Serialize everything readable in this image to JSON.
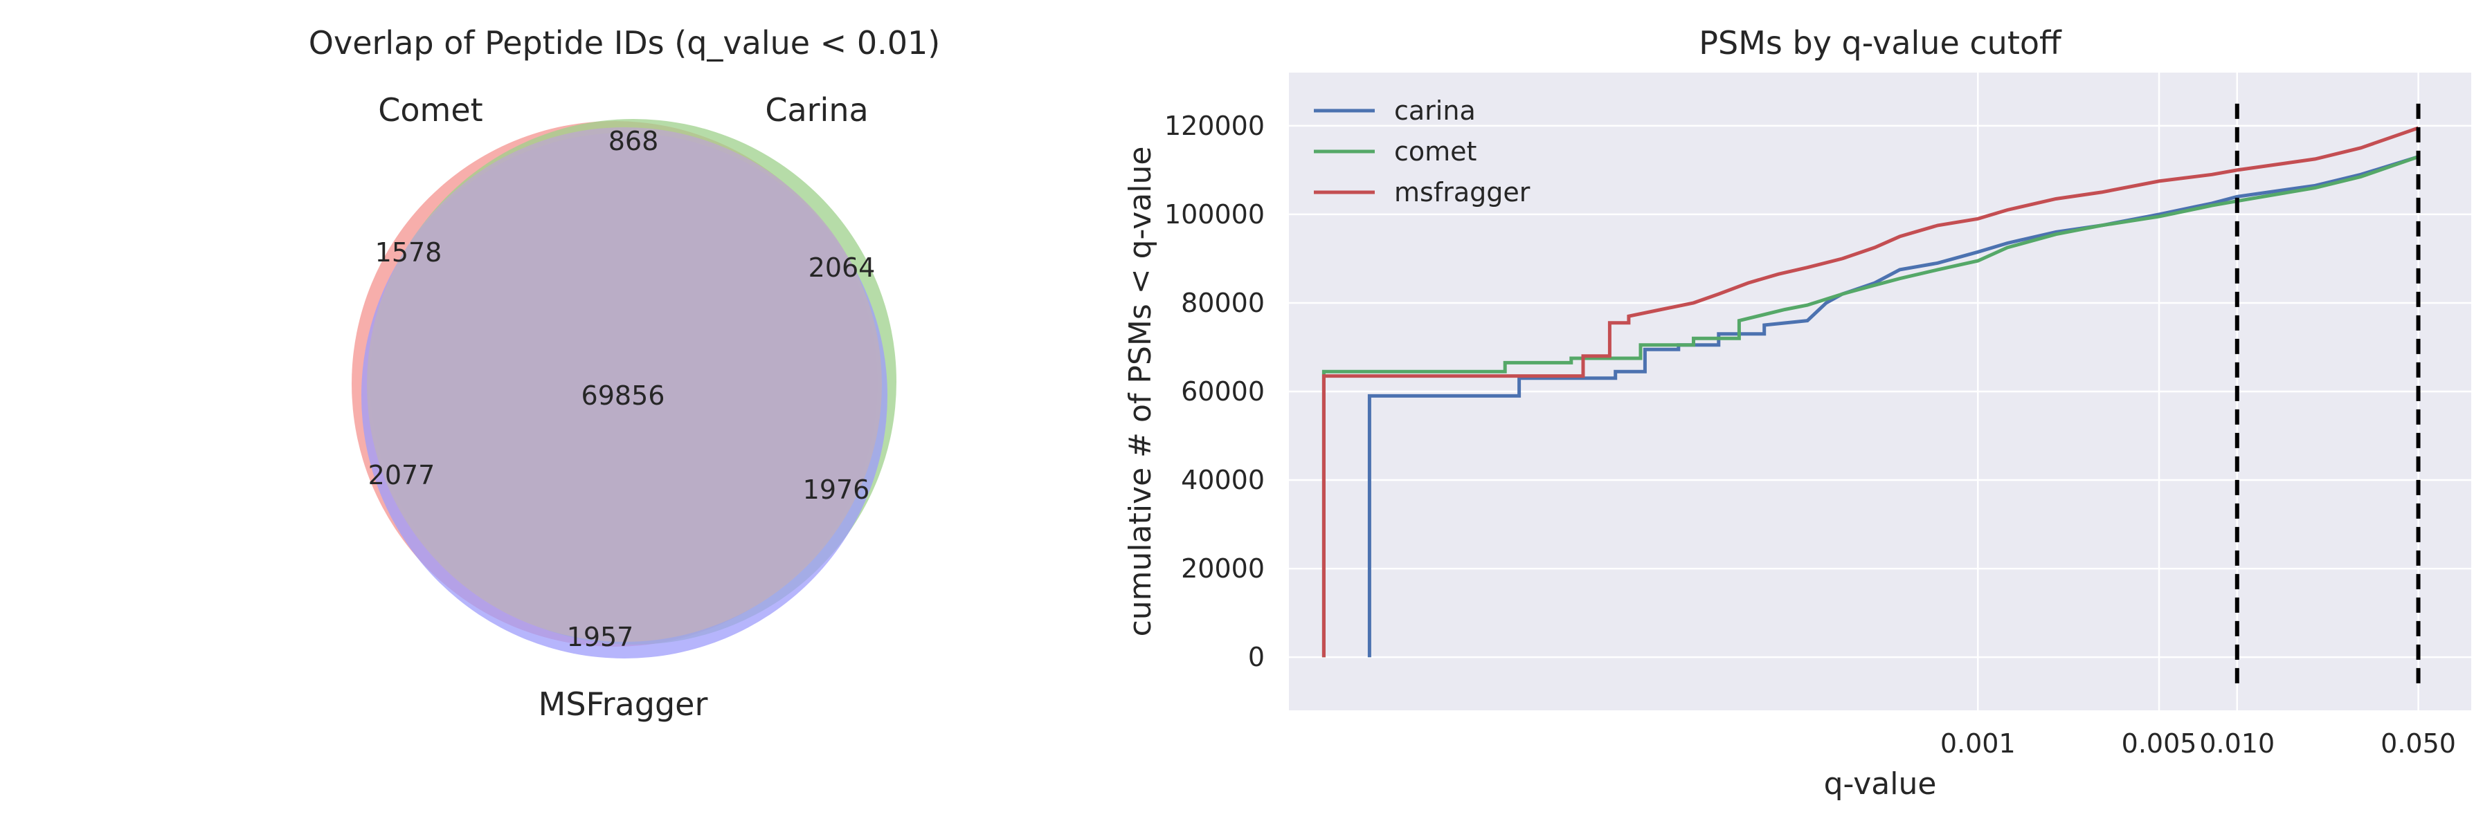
{
  "chart_data": [
    {
      "type": "venn",
      "title": "Overlap of Peptide IDs (q_value < 0.01)",
      "sets": [
        {
          "name": "Comet",
          "color": "#f08080"
        },
        {
          "name": "Carina",
          "color": "#8fce7a"
        },
        {
          "name": "MSFragger",
          "color": "#8f8fff"
        }
      ],
      "regions": [
        {
          "sets": [
            "Comet",
            "Carina"
          ],
          "value": 868
        },
        {
          "sets": [
            "Comet"
          ],
          "value": 1578
        },
        {
          "sets": [
            "Carina"
          ],
          "value": 2064
        },
        {
          "sets": [
            "Comet",
            "Carina",
            "MSFragger"
          ],
          "value": 69856
        },
        {
          "sets": [
            "Comet",
            "MSFragger"
          ],
          "value": 2077
        },
        {
          "sets": [
            "Carina",
            "MSFragger"
          ],
          "value": 1976
        },
        {
          "sets": [
            "MSFragger"
          ],
          "value": 1957
        }
      ]
    },
    {
      "type": "line",
      "title": "PSMs by q-value cutoff",
      "xlabel": "q-value",
      "ylabel": "cumulative # of PSMs < q-value",
      "xscale": "log",
      "xlim": [
        2.2e-06,
        0.08
      ],
      "ylim": [
        -12000,
        132000
      ],
      "xticks": [
        {
          "value": 0.001,
          "label": "0.001"
        },
        {
          "value": 0.005,
          "label": "0.005"
        },
        {
          "value": 0.01,
          "label": "0.010"
        },
        {
          "value": 0.05,
          "label": "0.050"
        }
      ],
      "yticks": [
        {
          "value": 0,
          "label": "0"
        },
        {
          "value": 20000,
          "label": "20000"
        },
        {
          "value": 40000,
          "label": "40000"
        },
        {
          "value": 60000,
          "label": "60000"
        },
        {
          "value": 80000,
          "label": "80000"
        },
        {
          "value": 100000,
          "label": "100000"
        },
        {
          "value": 120000,
          "label": "120000"
        }
      ],
      "grid": true,
      "legend_position": "top-left",
      "vlines": [
        0.01,
        0.05
      ],
      "series": [
        {
          "name": "carina",
          "color": "#4c72b0",
          "x": [
            4.5e-06,
            4.5e-06,
            1.7e-05,
            1.7e-05,
            4e-05,
            4e-05,
            5.2e-05,
            5.2e-05,
            7e-05,
            7e-05,
            0.0001,
            0.0001,
            0.00015,
            0.00015,
            0.00022,
            0.00026,
            0.0003,
            0.0004,
            0.0005,
            0.0007,
            0.001,
            0.0013,
            0.002,
            0.003,
            0.005,
            0.008,
            0.01,
            0.02,
            0.03,
            0.05
          ],
          "y": [
            0,
            59000,
            59000,
            63000,
            63000,
            64500,
            64500,
            69500,
            69500,
            70500,
            70500,
            73000,
            73000,
            75000,
            76000,
            80000,
            82000,
            84500,
            87500,
            89000,
            91500,
            93500,
            96000,
            97500,
            100000,
            102500,
            104000,
            106500,
            109000,
            113000
          ]
        },
        {
          "name": "comet",
          "color": "#55a868",
          "x": [
            3e-06,
            3e-06,
            1.5e-05,
            1.5e-05,
            2.7e-05,
            2.7e-05,
            5e-05,
            5e-05,
            8e-05,
            8e-05,
            0.00012,
            0.00012,
            0.00018,
            0.00022,
            0.0003,
            0.0004,
            0.0005,
            0.0007,
            0.001,
            0.0013,
            0.002,
            0.003,
            0.005,
            0.008,
            0.01,
            0.02,
            0.03,
            0.05
          ],
          "y": [
            0,
            64500,
            64500,
            66500,
            66500,
            67500,
            67500,
            70500,
            70500,
            72000,
            72000,
            76000,
            78500,
            79500,
            82000,
            84000,
            85500,
            87500,
            89500,
            92500,
            95500,
            97500,
            99500,
            102000,
            103000,
            106000,
            108500,
            113000
          ]
        },
        {
          "name": "msfragger",
          "color": "#c44e52",
          "x": [
            3e-06,
            3e-06,
            3e-05,
            3e-05,
            3.8e-05,
            3.8e-05,
            4.5e-05,
            4.5e-05,
            6e-05,
            8e-05,
            0.0001,
            0.00013,
            0.00017,
            0.00022,
            0.0003,
            0.0004,
            0.0005,
            0.0007,
            0.001,
            0.0013,
            0.002,
            0.003,
            0.005,
            0.008,
            0.01,
            0.02,
            0.03,
            0.05
          ],
          "y": [
            0,
            63500,
            63500,
            68000,
            68000,
            75500,
            75500,
            77000,
            78500,
            80000,
            82000,
            84500,
            86500,
            88000,
            90000,
            92500,
            95000,
            97500,
            99000,
            101000,
            103500,
            105000,
            107500,
            109000,
            110000,
            112500,
            115000,
            119500
          ]
        }
      ]
    }
  ]
}
